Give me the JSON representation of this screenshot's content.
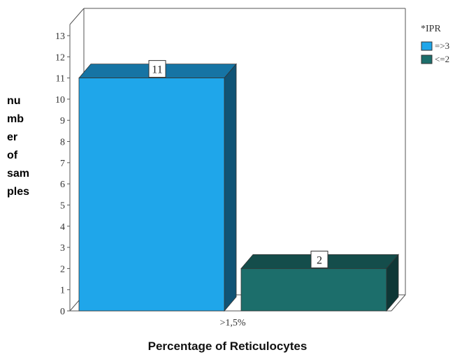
{
  "chart_data": {
    "type": "bar",
    "categories": [
      ">1,5%"
    ],
    "series": [
      {
        "name": "=>3",
        "values": [
          11
        ],
        "color": "#1fa6ea"
      },
      {
        "name": "<=2",
        "values": [
          2
        ],
        "color": "#1c6e6b"
      }
    ],
    "legend_title": "*IPR",
    "legend_placement": "top-right",
    "ylabel_lines": [
      "nu",
      "mb",
      "er",
      "of",
      "sam",
      "ples"
    ],
    "xlabel": "Percentage of Reticulocytes",
    "yticks": [
      0,
      1,
      2,
      3,
      4,
      5,
      6,
      7,
      8,
      9,
      10,
      11,
      12,
      13
    ],
    "ylim": [
      0,
      13
    ],
    "data_labels": [
      "11",
      "2"
    ],
    "grid": false,
    "style": "3d"
  }
}
